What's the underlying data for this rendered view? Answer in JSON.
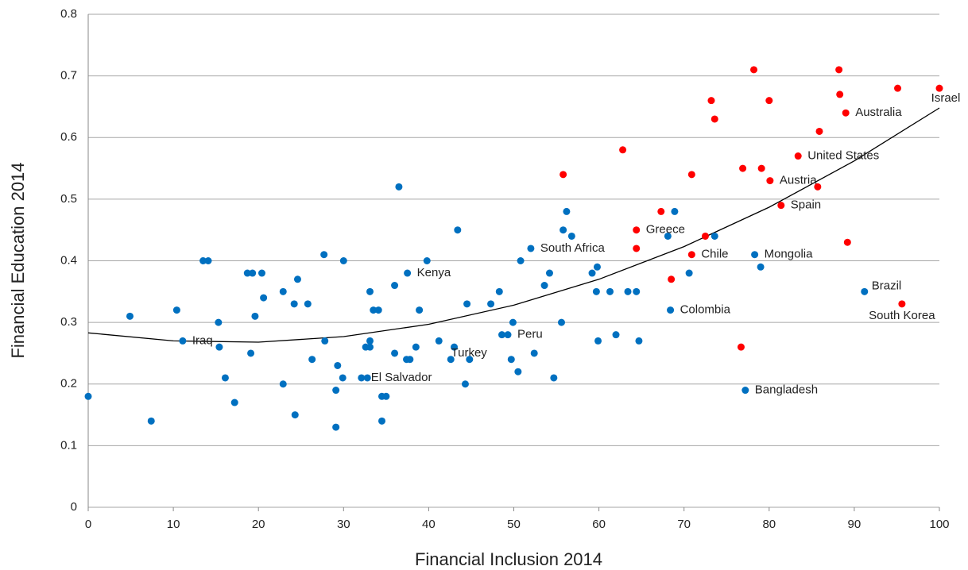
{
  "chart_data": {
    "type": "scatter",
    "x_label": "Financial Inclusion 2014",
    "y_label": "Financial Education 2014",
    "xlim": [
      0,
      100
    ],
    "xticks": [
      0,
      10,
      20,
      30,
      40,
      50,
      60,
      70,
      80,
      90,
      100
    ],
    "ylim": [
      0,
      0.8
    ],
    "yticks": [
      0,
      0.1,
      0.2,
      0.3,
      0.4,
      0.5,
      0.6,
      0.7,
      0.8
    ],
    "grid": true,
    "series": [
      {
        "color": "#0070c0",
        "x": [
          0,
          4.9,
          7.4,
          10.4,
          11.1,
          13.5,
          14.1,
          15.3,
          15.4,
          16.1,
          17.2,
          18.7,
          19.3,
          19.1,
          19.6,
          20.4,
          20.6,
          22.9,
          22.9,
          24.2,
          24.3,
          24.6,
          25.8,
          26.3,
          27.7,
          27.8,
          29.1,
          29.1,
          29.3,
          29.9,
          30.0,
          32.1,
          32.8,
          32.6,
          33.1,
          33.1,
          33.1,
          33.5,
          34.1,
          34.5,
          35.0,
          34.5,
          36.0,
          36.0,
          36.5,
          37.4,
          37.5,
          37.8,
          38.5,
          38.9,
          39.8,
          41.2,
          42.6,
          43.0,
          43.4,
          44.3,
          44.5,
          44.8,
          47.3,
          48.3,
          48.6,
          49.3,
          49.7,
          49.9,
          50.5,
          50.8,
          52.0,
          52.4,
          53.6,
          54.2,
          54.7,
          55.6,
          55.8,
          56.2,
          56.8,
          59.2,
          59.7,
          59.8,
          59.9,
          61.3,
          62.0,
          63.4,
          64.4,
          64.7,
          68.1,
          68.4,
          68.9,
          70.6,
          73.6,
          77.2,
          78.3,
          79.0,
          91.2
        ],
        "values": [
          0.18,
          0.31,
          0.14,
          0.32,
          0.27,
          0.4,
          0.4,
          0.3,
          0.26,
          0.21,
          0.17,
          0.38,
          0.38,
          0.25,
          0.31,
          0.38,
          0.34,
          0.35,
          0.2,
          0.33,
          0.15,
          0.37,
          0.33,
          0.24,
          0.41,
          0.27,
          0.13,
          0.19,
          0.23,
          0.21,
          0.4,
          0.21,
          0.21,
          0.26,
          0.26,
          0.27,
          0.35,
          0.32,
          0.32,
          0.18,
          0.18,
          0.14,
          0.25,
          0.36,
          0.52,
          0.24,
          0.38,
          0.24,
          0.26,
          0.32,
          0.4,
          0.27,
          0.24,
          0.26,
          0.45,
          0.2,
          0.33,
          0.24,
          0.33,
          0.35,
          0.28,
          0.28,
          0.24,
          0.3,
          0.22,
          0.4,
          0.42,
          0.25,
          0.36,
          0.38,
          0.21,
          0.3,
          0.45,
          0.48,
          0.44,
          0.38,
          0.35,
          0.39,
          0.27,
          0.35,
          0.28,
          0.35,
          0.35,
          0.27,
          0.44,
          0.32,
          0.48,
          0.38,
          0.44,
          0.19,
          0.41,
          0.39,
          0.35
        ],
        "point_labels": [
          null,
          null,
          null,
          null,
          "Iraq",
          null,
          null,
          null,
          null,
          null,
          null,
          null,
          null,
          null,
          null,
          null,
          null,
          null,
          null,
          null,
          null,
          null,
          null,
          null,
          null,
          null,
          null,
          null,
          null,
          null,
          null,
          "El Salvador",
          null,
          null,
          null,
          null,
          null,
          null,
          null,
          null,
          null,
          null,
          null,
          null,
          null,
          null,
          "Kenya",
          null,
          null,
          null,
          null,
          null,
          null,
          "Turkey",
          null,
          null,
          null,
          null,
          null,
          null,
          null,
          "Peru",
          null,
          null,
          null,
          null,
          "South Africa",
          null,
          null,
          null,
          null,
          null,
          null,
          null,
          null,
          null,
          null,
          null,
          null,
          null,
          null,
          null,
          null,
          null,
          null,
          "Colombia",
          null,
          null,
          null,
          "Bangladesh",
          "Mongolia",
          null,
          "Brazil"
        ]
      },
      {
        "color": "#ff0000",
        "x": [
          55.8,
          62.8,
          64.4,
          64.4,
          67.3,
          68.5,
          70.9,
          70.9,
          72.5,
          73.2,
          73.6,
          76.7,
          76.9,
          78.2,
          79.1,
          80.0,
          80.1,
          81.4,
          83.4,
          85.7,
          85.9,
          88.2,
          88.3,
          89.0,
          89.2,
          95.1,
          95.6,
          100
        ],
        "values": [
          0.54,
          0.58,
          0.45,
          0.42,
          0.48,
          0.37,
          0.54,
          0.41,
          0.44,
          0.66,
          0.63,
          0.26,
          0.55,
          0.71,
          0.55,
          0.66,
          0.53,
          0.49,
          0.57,
          0.52,
          0.61,
          0.71,
          0.67,
          0.64,
          0.43,
          0.68,
          0.33,
          0.68
        ],
        "point_labels": [
          null,
          null,
          "Greece",
          null,
          null,
          null,
          null,
          "Chile",
          null,
          null,
          null,
          null,
          null,
          null,
          null,
          null,
          "Austria",
          "Spain",
          "United States",
          null,
          null,
          null,
          null,
          "Australia",
          null,
          null,
          "South Korea",
          "Israel"
        ]
      }
    ],
    "trendline": {
      "x": [
        0,
        10,
        20,
        30,
        40,
        50,
        60,
        70,
        80,
        90,
        100
      ],
      "values": [
        0.283,
        0.27,
        0.268,
        0.277,
        0.297,
        0.328,
        0.37,
        0.423,
        0.487,
        0.562,
        0.648
      ]
    }
  }
}
